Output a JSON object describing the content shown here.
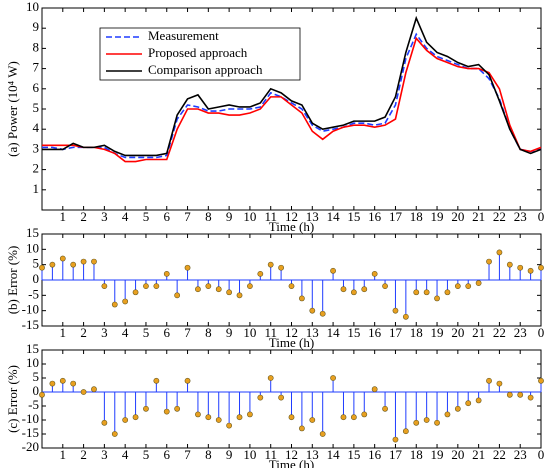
{
  "chart_data": [
    {
      "type": "line",
      "ylabel": "(a) Power (10⁴ W)",
      "xlabel": "Time (h)",
      "x": [
        0,
        0.5,
        1,
        1.5,
        2,
        2.5,
        3,
        3.5,
        4,
        4.5,
        5,
        5.5,
        6,
        6.5,
        7,
        7.5,
        8,
        8.5,
        9,
        9.5,
        10,
        10.5,
        11,
        11.5,
        12,
        12.5,
        13,
        13.5,
        14,
        14.5,
        15,
        15.5,
        16,
        16.5,
        17,
        17.5,
        18,
        18.5,
        19,
        19.5,
        20,
        20.5,
        21,
        21.5,
        22,
        22.5,
        23,
        23.5,
        24
      ],
      "series": [
        {
          "name": "Measurement",
          "color": "#1f3cff",
          "dashed": true,
          "values": [
            3.1,
            3.1,
            3.0,
            3.1,
            3.1,
            3.1,
            3.1,
            2.8,
            2.6,
            2.6,
            2.6,
            2.6,
            2.7,
            4.5,
            5.2,
            5.1,
            4.9,
            4.9,
            5.0,
            5.0,
            5.0,
            5.1,
            5.8,
            5.6,
            5.3,
            5.0,
            4.2,
            3.9,
            4.0,
            4.1,
            4.3,
            4.3,
            4.2,
            4.3,
            5.2,
            7.5,
            8.7,
            8.0,
            7.6,
            7.4,
            7.2,
            7.0,
            7.0,
            6.5,
            5.5,
            4.0,
            3.0,
            2.9,
            3.0
          ]
        },
        {
          "name": "Proposed approach",
          "color": "#ff0000",
          "dashed": false,
          "values": [
            3.2,
            3.2,
            3.2,
            3.2,
            3.1,
            3.1,
            3.0,
            2.8,
            2.4,
            2.4,
            2.5,
            2.5,
            2.5,
            4.0,
            5.0,
            5.0,
            4.8,
            4.8,
            4.7,
            4.7,
            4.8,
            5.0,
            5.6,
            5.6,
            5.2,
            4.8,
            3.9,
            3.5,
            3.9,
            4.1,
            4.2,
            4.2,
            4.1,
            4.2,
            4.5,
            6.8,
            8.5,
            7.9,
            7.5,
            7.3,
            7.1,
            7.0,
            7.0,
            6.8,
            6.0,
            4.2,
            3.0,
            2.9,
            3.1
          ]
        },
        {
          "name": "Comparison approach",
          "color": "#000000",
          "dashed": false,
          "values": [
            3.0,
            3.0,
            3.0,
            3.3,
            3.1,
            3.1,
            3.2,
            2.9,
            2.7,
            2.7,
            2.7,
            2.7,
            2.8,
            4.7,
            5.5,
            5.7,
            5.0,
            5.1,
            5.2,
            5.1,
            5.1,
            5.3,
            6.0,
            5.8,
            5.4,
            5.2,
            4.3,
            4.0,
            4.1,
            4.2,
            4.4,
            4.4,
            4.4,
            4.6,
            5.6,
            7.8,
            9.5,
            8.3,
            7.8,
            7.6,
            7.3,
            7.1,
            7.2,
            6.7,
            5.4,
            4.0,
            3.0,
            2.8,
            3.0
          ]
        }
      ],
      "xlim": [
        0,
        24
      ],
      "xticks": [
        1,
        2,
        3,
        4,
        5,
        6,
        7,
        8,
        9,
        10,
        11,
        12,
        13,
        14,
        15,
        16,
        17,
        18,
        19,
        20,
        21,
        22,
        23,
        {
          "value": 24,
          "label": "0"
        }
      ],
      "ylim": [
        0,
        10
      ],
      "yticks": [
        1,
        2,
        3,
        4,
        5,
        6,
        7,
        8,
        9,
        10
      ],
      "legend": "upper left"
    },
    {
      "type": "stem",
      "ylabel": "(b) Error (%)",
      "xlabel": "Time (h)",
      "color": "#1f3cff",
      "marker_color": "#e8a020",
      "x": [
        0,
        0.5,
        1,
        1.5,
        2,
        2.5,
        3,
        3.5,
        4,
        4.5,
        5,
        5.5,
        6,
        6.5,
        7,
        7.5,
        8,
        8.5,
        9,
        9.5,
        10,
        10.5,
        11,
        11.5,
        12,
        12.5,
        13,
        13.5,
        14,
        14.5,
        15,
        15.5,
        16,
        16.5,
        17,
        17.5,
        18,
        18.5,
        19,
        19.5,
        20,
        20.5,
        21,
        21.5,
        22,
        22.5,
        23,
        23.5,
        24
      ],
      "values": [
        4,
        5,
        7,
        5,
        6,
        6,
        -2,
        -8,
        -7,
        -4,
        -2,
        -2,
        2,
        -5,
        4,
        -3,
        -2,
        -3,
        -4,
        -5,
        -2,
        2,
        5,
        4,
        -2,
        -6,
        -10,
        -11,
        3,
        -3,
        -4,
        -3,
        2,
        -2,
        -10,
        -12,
        -4,
        -4,
        -6,
        -4,
        -2,
        -2,
        -1,
        6,
        9,
        5,
        4,
        3,
        4
      ],
      "xlim": [
        0,
        24
      ],
      "xticks": [
        1,
        2,
        3,
        4,
        5,
        6,
        7,
        8,
        9,
        10,
        11,
        12,
        13,
        14,
        15,
        16,
        17,
        18,
        19,
        20,
        21,
        22,
        23,
        {
          "value": 24,
          "label": "0"
        }
      ],
      "ylim": [
        -15,
        15
      ],
      "yticks": [
        -15,
        -10,
        -5,
        0,
        5,
        10,
        15
      ]
    },
    {
      "type": "stem",
      "ylabel": "(c) Error (%)",
      "xlabel": "Time (h)",
      "color": "#1f3cff",
      "marker_color": "#e8a020",
      "x": [
        0,
        0.5,
        1,
        1.5,
        2,
        2.5,
        3,
        3.5,
        4,
        4.5,
        5,
        5.5,
        6,
        6.5,
        7,
        7.5,
        8,
        8.5,
        9,
        9.5,
        10,
        10.5,
        11,
        11.5,
        12,
        12.5,
        13,
        13.5,
        14,
        14.5,
        15,
        15.5,
        16,
        16.5,
        17,
        17.5,
        18,
        18.5,
        19,
        19.5,
        20,
        20.5,
        21,
        21.5,
        22,
        22.5,
        23,
        23.5,
        24
      ],
      "values": [
        -1,
        3,
        4,
        3,
        0,
        1,
        -11,
        -15,
        -10,
        -9,
        -6,
        4,
        -7,
        -6,
        4,
        -8,
        -9,
        -10,
        -12,
        -9,
        -8,
        -2,
        5,
        -2,
        -9,
        -13,
        -10,
        -15,
        5,
        -9,
        -9,
        -8,
        1,
        -6,
        -17,
        -14,
        -11,
        -10,
        -11,
        -8,
        -6,
        -4,
        -3,
        4,
        3,
        -1,
        -1,
        -2,
        4
      ],
      "xlim": [
        0,
        24
      ],
      "xticks": [
        1,
        2,
        3,
        4,
        5,
        6,
        7,
        8,
        9,
        10,
        11,
        12,
        13,
        14,
        15,
        16,
        17,
        18,
        19,
        20,
        21,
        22,
        23,
        {
          "value": 24,
          "label": "0"
        }
      ],
      "ylim": [
        -20,
        15
      ],
      "yticks": [
        -20,
        -15,
        -10,
        -5,
        0,
        5,
        10,
        15
      ]
    }
  ]
}
